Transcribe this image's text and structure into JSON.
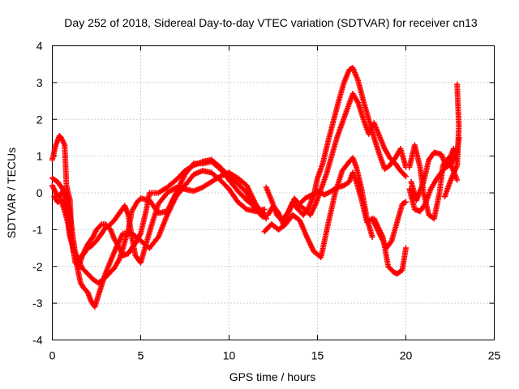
{
  "chart_data": {
    "type": "scatter",
    "title": "Day 252 of 2018, Sidereal Day-to-day VTEC variation (SDTVAR) for receiver cn13",
    "xlabel": "GPS time / hours",
    "ylabel": "SDTVAR / TECUs",
    "xlim": [
      0,
      25
    ],
    "ylim": [
      -4,
      4
    ],
    "xticks": [
      0,
      5,
      10,
      15,
      20,
      25
    ],
    "yticks": [
      -4,
      -3,
      -2,
      -1,
      0,
      1,
      2,
      3,
      4
    ],
    "grid": true,
    "marker": "+",
    "color": "#ff0000",
    "series": [
      {
        "name": "track-1",
        "x": [
          0.0,
          0.2,
          0.4,
          0.5,
          0.7,
          0.8,
          1.0,
          1.1,
          1.3,
          1.5,
          1.7,
          2.0,
          2.3,
          2.5,
          2.8,
          3.0,
          3.3,
          3.5,
          3.8,
          4.0,
          4.3,
          4.5,
          4.8,
          5.0,
          5.3,
          5.5,
          6.0,
          6.5,
          7.0,
          7.5,
          8.0,
          8.5,
          9.0,
          9.5,
          10.0,
          10.5,
          11.0,
          11.5,
          11.9
        ],
        "y": [
          0.9,
          1.3,
          1.55,
          1.5,
          1.3,
          0.2,
          -0.2,
          -1.3,
          -1.9,
          -2.0,
          -1.7,
          -1.4,
          -1.2,
          -1.0,
          -0.85,
          -0.85,
          -1.0,
          -1.25,
          -1.5,
          -1.7,
          -1.65,
          -1.5,
          -1.3,
          -1.1,
          -0.5,
          0.0,
          0.0,
          0.15,
          0.35,
          0.6,
          0.75,
          0.85,
          0.9,
          0.7,
          0.45,
          0.25,
          0.0,
          -0.45,
          -0.65
        ]
      },
      {
        "name": "track-2",
        "x": [
          0.0,
          0.3,
          0.6,
          0.9,
          1.0,
          1.2,
          1.4,
          1.6,
          1.8,
          2.0,
          2.2,
          2.4,
          2.6,
          2.8,
          3.0,
          3.3,
          3.6,
          4.0,
          4.5,
          5.0,
          5.5,
          6.0,
          6.5,
          7.0,
          7.5,
          8.0,
          8.5,
          9.0,
          9.5,
          10.0,
          10.5,
          11.0,
          11.5,
          12.0
        ],
        "y": [
          0.4,
          0.3,
          0.1,
          -0.2,
          -0.6,
          -1.3,
          -2.0,
          -2.45,
          -2.6,
          -2.7,
          -2.95,
          -3.1,
          -2.8,
          -2.5,
          -2.2,
          -1.85,
          -1.5,
          -1.1,
          -1.1,
          -1.3,
          -1.5,
          -1.2,
          -0.6,
          -0.1,
          0.2,
          0.5,
          0.6,
          0.55,
          0.35,
          0.1,
          -0.25,
          -0.45,
          -0.5,
          -0.45
        ]
      },
      {
        "name": "track-3",
        "x": [
          0.0,
          0.2,
          0.4,
          0.6,
          0.8,
          1.0,
          1.2,
          1.5,
          1.8,
          2.0,
          2.2,
          2.5,
          2.8,
          3.0,
          3.2,
          3.5,
          3.8,
          4.1,
          4.3,
          4.5,
          4.7,
          5.0,
          5.3,
          5.6,
          6.0,
          6.5,
          7.0,
          7.5,
          8.0,
          8.5,
          9.0,
          9.5,
          10.0,
          10.5,
          11.0,
          11.5,
          12.1
        ],
        "y": [
          0.2,
          0.0,
          -0.1,
          0.05,
          -0.4,
          -1.1,
          -1.6,
          -1.8,
          -1.65,
          -1.5,
          -1.45,
          -1.3,
          -1.1,
          -0.95,
          -0.9,
          -0.75,
          -0.55,
          -0.35,
          -0.6,
          -1.2,
          -1.7,
          -1.9,
          -1.4,
          -0.9,
          -0.3,
          0.0,
          0.15,
          0.1,
          0.05,
          0.15,
          0.3,
          0.45,
          0.55,
          0.4,
          0.2,
          -0.3,
          -0.7
        ]
      },
      {
        "name": "track-4",
        "x": [
          0.1,
          0.3,
          0.5,
          0.7,
          0.9,
          1.0,
          1.2,
          1.4,
          1.7,
          2.0,
          2.3,
          2.6,
          2.9,
          3.2,
          3.5,
          3.8,
          4.0,
          4.3,
          4.5,
          4.8,
          5.0,
          5.5,
          6.0,
          6.5,
          7.0,
          7.5,
          8.0,
          8.5,
          9.0,
          9.5,
          10.0,
          10.5,
          11.0,
          11.5,
          12.0
        ],
        "y": [
          -0.1,
          -0.25,
          -0.2,
          -0.5,
          -0.85,
          -1.2,
          -1.5,
          -1.75,
          -2.05,
          -2.2,
          -2.35,
          -2.45,
          -2.35,
          -2.2,
          -2.05,
          -1.8,
          -1.5,
          -1.0,
          -0.5,
          -0.25,
          -0.15,
          -0.2,
          -0.55,
          -0.5,
          0.0,
          0.5,
          0.8,
          0.8,
          0.85,
          0.65,
          0.35,
          0.05,
          -0.2,
          -0.4,
          -0.55
        ]
      },
      {
        "name": "track-5",
        "x": [
          12.1,
          12.4,
          12.7,
          13.0,
          13.3,
          13.6,
          13.9,
          14.2,
          14.5,
          14.8,
          15.0,
          15.3,
          15.6,
          15.9,
          16.2,
          16.5,
          16.8,
          17.0,
          17.3,
          17.6,
          17.9,
          18.2,
          18.5,
          18.8,
          19.1,
          19.4,
          19.7,
          20.0
        ],
        "y": [
          0.15,
          -0.2,
          -0.6,
          -0.75,
          -0.55,
          -0.25,
          -0.45,
          -0.6,
          -0.4,
          -0.05,
          0.4,
          0.8,
          1.4,
          1.95,
          2.5,
          3.0,
          3.35,
          3.4,
          3.05,
          2.5,
          2.0,
          1.5,
          1.05,
          0.65,
          0.75,
          0.95,
          1.2,
          0.7
        ]
      },
      {
        "name": "track-6",
        "x": [
          12.2,
          12.5,
          12.8,
          13.1,
          13.4,
          13.7,
          14.0,
          14.3,
          14.6,
          14.9,
          15.2,
          15.5,
          15.8,
          16.1,
          16.4,
          16.7,
          17.0,
          17.3,
          17.6,
          17.9,
          18.2,
          18.5,
          18.8,
          19.1,
          19.4,
          19.7,
          20.0
        ],
        "y": [
          -0.6,
          -0.35,
          -0.55,
          -0.9,
          -0.5,
          -0.15,
          -0.35,
          -0.45,
          -0.6,
          -0.3,
          0.1,
          0.5,
          1.0,
          1.5,
          1.9,
          2.3,
          2.7,
          2.45,
          2.0,
          1.6,
          1.9,
          1.55,
          1.2,
          0.95,
          0.8,
          0.6,
          0.45
        ]
      },
      {
        "name": "track-7",
        "x": [
          12.0,
          12.4,
          12.8,
          13.2,
          13.6,
          14.0,
          14.4,
          14.8,
          15.2,
          15.6,
          16.0,
          16.4,
          16.8,
          17.0,
          17.2,
          17.5,
          17.8,
          18.1
        ],
        "y": [
          -1.05,
          -0.85,
          -1.0,
          -0.85,
          -0.6,
          -0.75,
          -1.2,
          -1.6,
          -1.75,
          -0.85,
          0.0,
          0.6,
          0.85,
          0.95,
          0.7,
          0.1,
          -0.7,
          -1.2
        ]
      },
      {
        "name": "track-8",
        "x": [
          13.9,
          14.3,
          14.7,
          15.0,
          15.4,
          15.8,
          16.1,
          16.5,
          16.8,
          17.0,
          17.2,
          17.5,
          17.8,
          18.1,
          18.5,
          18.9,
          19.2,
          19.5,
          19.8,
          20.0
        ],
        "y": [
          -0.35,
          -0.15,
          -0.05,
          0.05,
          -0.05,
          0.05,
          0.15,
          0.2,
          0.3,
          0.55,
          0.3,
          -0.2,
          -0.8,
          -0.7,
          -1.1,
          -1.5,
          -1.3,
          -0.8,
          -0.3,
          -0.25
        ]
      },
      {
        "name": "track-9",
        "x": [
          18.2,
          18.4,
          18.7,
          19.0,
          19.3,
          19.5,
          19.8,
          20.0
        ],
        "y": [
          -0.7,
          -0.9,
          -1.2,
          -2.0,
          -2.15,
          -2.2,
          -2.1,
          -1.5
        ]
      },
      {
        "name": "track-10",
        "x": [
          20.2,
          20.5,
          20.8,
          21.0,
          21.3,
          21.6,
          21.9,
          22.1,
          22.4,
          22.6,
          22.9
        ],
        "y": [
          0.7,
          1.3,
          0.7,
          0.0,
          -0.6,
          -0.7,
          0.0,
          0.75,
          0.95,
          0.7,
          0.35
        ]
      },
      {
        "name": "track-11",
        "x": [
          20.2,
          20.5,
          20.8,
          21.1,
          21.4,
          21.7,
          22.0,
          22.3,
          22.5,
          22.7,
          22.9
        ],
        "y": [
          0.1,
          -0.45,
          -0.5,
          -0.3,
          0.1,
          0.35,
          0.55,
          0.75,
          0.95,
          1.2,
          0.8
        ]
      },
      {
        "name": "track-12",
        "x": [
          20.3,
          20.6,
          21.0,
          21.3,
          21.6,
          22.0,
          22.3,
          22.6,
          22.9,
          23.0
        ],
        "y": [
          0.3,
          -0.2,
          0.3,
          0.9,
          1.1,
          1.05,
          0.7,
          0.8,
          1.1,
          1.5
        ]
      },
      {
        "name": "track-13",
        "x": [
          22.2,
          22.5,
          22.9,
          23.0,
          22.9
        ],
        "y": [
          -0.1,
          0.3,
          0.75,
          1.8,
          2.95
        ]
      }
    ]
  }
}
